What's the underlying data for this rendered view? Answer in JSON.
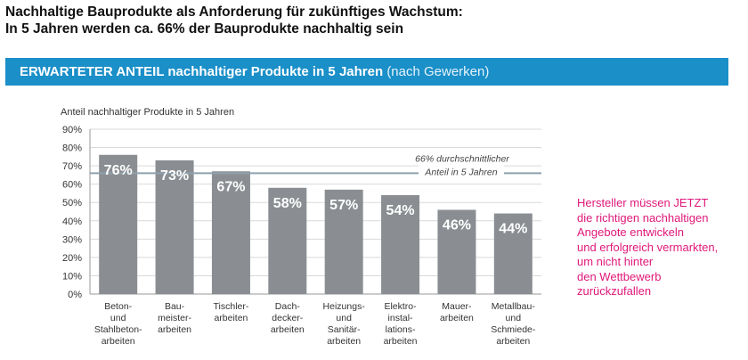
{
  "headline": {
    "line1": "Nachhaltige Bauprodukte als Anforderung für zukünftiges Wachstum:",
    "line2": "In 5 Jahren werden ca. 66% der Bauprodukte nachhaltig sein"
  },
  "banner": {
    "bold": "ERWARTETER ANTEIL nachhaltiger Produkte in 5 Jahren",
    "light": "(nach Gewerken)",
    "color": "#1a8fc8"
  },
  "side_note": {
    "lines": [
      "Hersteller müssen JETZT",
      "die richtigen nachhaltigen",
      "Angebote entwickeln",
      "und erfolgreich vermarkten,",
      "um nicht hinter",
      "den Wettbewerb",
      "zurückzufallen"
    ],
    "color": "#e0187a"
  },
  "chart_data": {
    "type": "bar",
    "ylabel": "Anteil nachhaltiger Produkte in 5 Jahren",
    "ylim": [
      0,
      90
    ],
    "yticks": [
      "0%",
      "10%",
      "20%",
      "30%",
      "40%",
      "50%",
      "60%",
      "70%",
      "80%",
      "90%"
    ],
    "ytick_values": [
      0,
      10,
      20,
      30,
      40,
      50,
      60,
      70,
      80,
      90
    ],
    "categories": [
      [
        "Beton-",
        "und",
        "Stahlbeton-",
        "arbeiten"
      ],
      [
        "Bau-",
        "meister-",
        "arbeiten"
      ],
      [
        "Tischler-",
        "arbeiten"
      ],
      [
        "Dach-",
        "decker-",
        "arbeiten"
      ],
      [
        "Heizungs-",
        "und",
        "Sanitär-",
        "arbeiten"
      ],
      [
        "Elektro-",
        "instal-",
        "lations-",
        "arbeiten"
      ],
      [
        "Mauer-",
        "arbeiten"
      ],
      [
        "Metallbau-",
        "und",
        "Schmiede-",
        "arbeiten"
      ]
    ],
    "values": [
      76,
      73,
      67,
      58,
      57,
      54,
      46,
      44
    ],
    "value_labels": [
      "76%",
      "73%",
      "67%",
      "58%",
      "57%",
      "54%",
      "46%",
      "44%"
    ],
    "average": 66,
    "average_label": [
      "66% durchschnittlicher",
      "Anteil in 5 Jahren"
    ],
    "bar_color": "#8a8e92",
    "line_color": "#8fa0ad",
    "grid": true
  }
}
